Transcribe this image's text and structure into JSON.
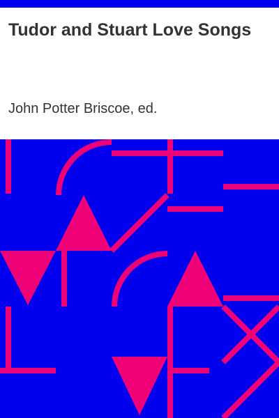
{
  "book": {
    "title": "Tudor and Stuart Love Songs",
    "author": "John Potter Briscoe, ed."
  },
  "colors": {
    "frame": "#0000ee",
    "pattern_background": "#0000ee",
    "pattern_accent": "#ee0077",
    "text": "#333333",
    "page_background": "#ffffff"
  }
}
